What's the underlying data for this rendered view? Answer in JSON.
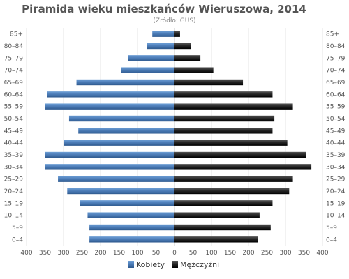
{
  "chart_data": {
    "type": "bar",
    "orientation": "horizontal-pyramid",
    "title": "Piramida wieku mieszkańców Wieruszowa, 2014",
    "subtitle": "(Źródło: GUS)",
    "categories": [
      "85+",
      "80–84",
      "75–79",
      "70–74",
      "65–69",
      "60–64",
      "55–59",
      "50–54",
      "45–49",
      "40–44",
      "35–39",
      "30–34",
      "25–29",
      "20–24",
      "15–19",
      "10–14",
      "5–9",
      "0–4"
    ],
    "series": [
      {
        "name": "Kobiety",
        "color": "#4a7ab5",
        "values": [
          60,
          75,
          125,
          145,
          265,
          345,
          350,
          285,
          260,
          300,
          350,
          350,
          315,
          290,
          255,
          235,
          230,
          230
        ]
      },
      {
        "name": "Mężczyźni",
        "color": "#222222",
        "values": [
          15,
          45,
          70,
          105,
          185,
          265,
          320,
          270,
          265,
          305,
          355,
          370,
          320,
          310,
          265,
          230,
          260,
          225
        ]
      }
    ],
    "xlim": [
      -400,
      400
    ],
    "xticks": [
      "400",
      "350",
      "300",
      "250",
      "200",
      "150",
      "100",
      "50",
      "0",
      "50",
      "100",
      "150",
      "200",
      "250",
      "300",
      "350",
      "400"
    ],
    "grid": true,
    "legend": "bottom-center"
  }
}
